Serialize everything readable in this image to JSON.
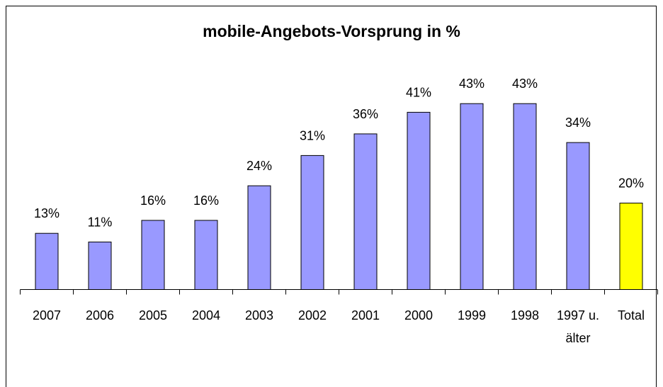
{
  "chart_data": {
    "type": "bar",
    "title": "mobile-Angebots-Vorsprung  in %",
    "categories": [
      "2007",
      "2006",
      "2005",
      "2004",
      "2003",
      "2002",
      "2001",
      "2000",
      "1999",
      "1998",
      "1997 u. älter",
      "Total"
    ],
    "values": [
      13,
      11,
      16,
      16,
      24,
      31,
      36,
      41,
      43,
      43,
      34,
      20
    ],
    "value_labels": [
      "13%",
      "11%",
      "16%",
      "16%",
      "24%",
      "31%",
      "36%",
      "41%",
      "43%",
      "43%",
      "34%",
      "20%"
    ],
    "colors": [
      "#9999ff",
      "#9999ff",
      "#9999ff",
      "#9999ff",
      "#9999ff",
      "#9999ff",
      "#9999ff",
      "#9999ff",
      "#9999ff",
      "#9999ff",
      "#9999ff",
      "#ffff00"
    ]
  }
}
